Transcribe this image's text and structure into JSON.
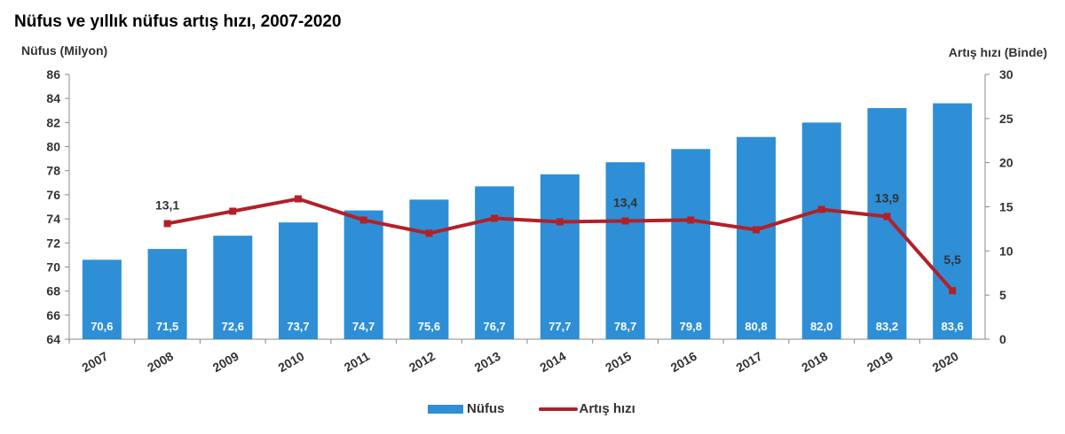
{
  "chart_data": {
    "type": "bar+line",
    "title": "Nüfus ve yıllık nüfus artış hızı, 2007-2020",
    "ylabel_left": "Nüfus (Milyon)",
    "ylabel_right": "Artış hızı (Binde)",
    "ylim_left": [
      64,
      86
    ],
    "yticks_left": [
      64,
      66,
      68,
      70,
      72,
      74,
      76,
      78,
      80,
      82,
      84,
      86
    ],
    "ylim_right": [
      0,
      30
    ],
    "yticks_right": [
      0,
      5,
      10,
      15,
      20,
      25,
      30
    ],
    "grid": false,
    "legend_position": "bottom",
    "categories": [
      "2007",
      "2008",
      "2009",
      "2010",
      "2011",
      "2012",
      "2013",
      "2014",
      "2015",
      "2016",
      "2017",
      "2018",
      "2019",
      "2020"
    ],
    "series": [
      {
        "name": "Nüfus",
        "type": "bar",
        "axis": "left",
        "color": "#2e8fd6",
        "values": [
          70.6,
          71.5,
          72.6,
          73.7,
          74.7,
          75.6,
          76.7,
          77.7,
          78.7,
          79.8,
          80.8,
          82.0,
          83.2,
          83.6
        ],
        "labels": [
          "70,6",
          "71,5",
          "72,6",
          "73,7",
          "74,7",
          "75,6",
          "76,7",
          "77,7",
          "78,7",
          "79,8",
          "80,8",
          "82,0",
          "83,2",
          "83,6"
        ]
      },
      {
        "name": "Artış hızı",
        "type": "line",
        "axis": "right",
        "color": "#b22028",
        "values": [
          null,
          13.1,
          14.5,
          15.9,
          13.5,
          12.0,
          13.7,
          13.3,
          13.4,
          13.5,
          12.4,
          14.7,
          13.9,
          5.5
        ],
        "labels": [
          null,
          "13,1",
          null,
          null,
          null,
          null,
          null,
          null,
          "13,4",
          null,
          null,
          null,
          "13,9",
          "5,5"
        ]
      }
    ]
  }
}
